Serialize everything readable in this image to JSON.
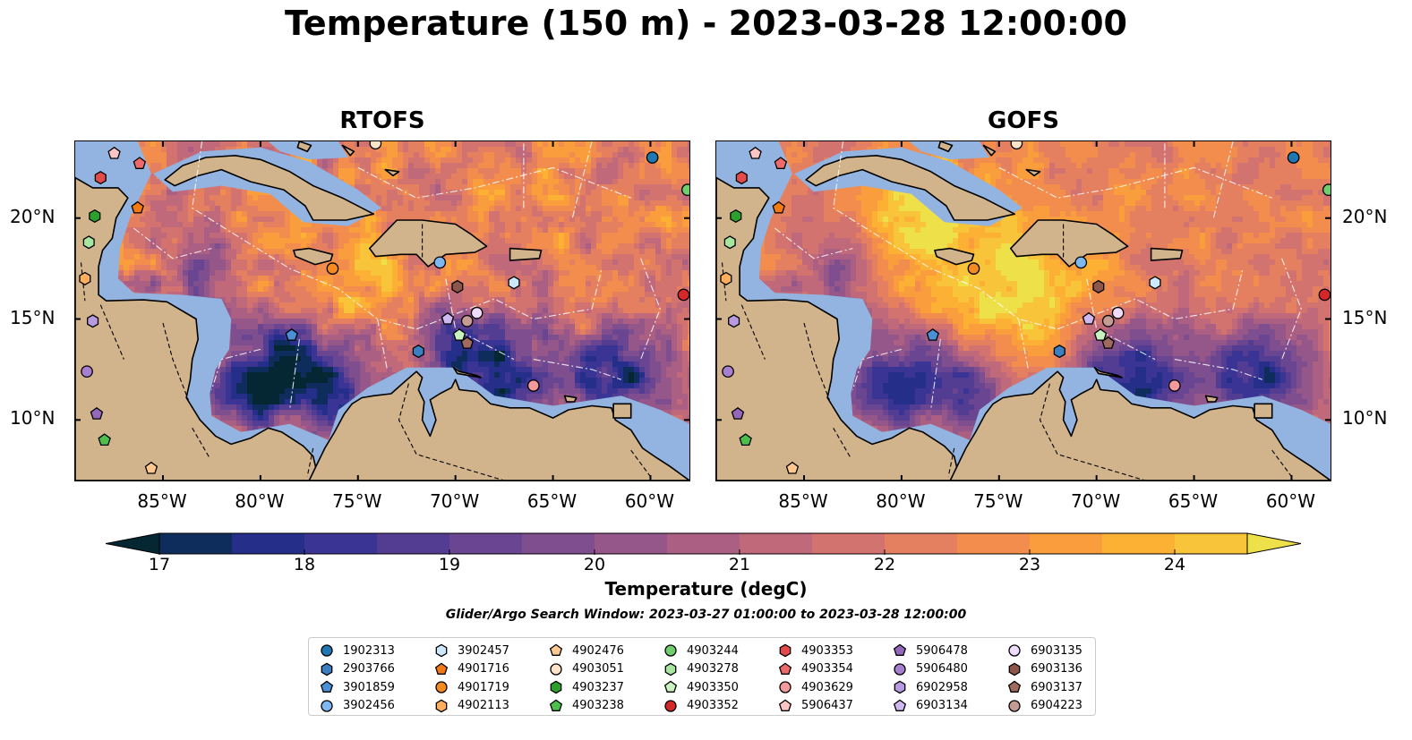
{
  "title": "Temperature (150 m) - 2023-03-28 12:00:00",
  "panels": [
    {
      "title": "RTOFS"
    },
    {
      "title": "GOFS"
    }
  ],
  "map": {
    "lon_range": [
      -89.5,
      -58.0
    ],
    "lat_range": [
      7.0,
      23.8
    ],
    "lon_ticks": [
      -85,
      -80,
      -75,
      -70,
      -65,
      -60
    ],
    "lon_tick_labels": [
      "85°W",
      "80°W",
      "75°W",
      "70°W",
      "65°W",
      "60°W"
    ],
    "lat_ticks": [
      10,
      15,
      20
    ],
    "lat_tick_labels": [
      "10°N",
      "15°N",
      "20°N"
    ],
    "land_color": "#d2b48c",
    "shelf_color": "#93b3e0"
  },
  "colorbar": {
    "label": "Temperature (degC)",
    "min": 17,
    "max": 24.5,
    "ticks": [
      17,
      18,
      19,
      20,
      21,
      22,
      23,
      24
    ],
    "tick_labels": [
      "17",
      "18",
      "19",
      "20",
      "21",
      "22",
      "23",
      "24"
    ],
    "extend": "both",
    "colors": [
      "#052633",
      "#0f2d5c",
      "#252f8a",
      "#3a3594",
      "#533d92",
      "#6a4591",
      "#7f4e8e",
      "#955689",
      "#ab5f83",
      "#c0697b",
      "#d37370",
      "#e47f60",
      "#f28d4d",
      "#fa9d3c",
      "#fcb034",
      "#f8c53a",
      "#eee049"
    ]
  },
  "search_window": "Glider/Argo Search Window: 2023-03-27 01:00:00 to 2023-03-28 12:00:00",
  "legend": [
    {
      "id": "1902313",
      "marker": "circle",
      "color": "#1f77b4",
      "lon": -59.9,
      "lat": 23.0
    },
    {
      "id": "2903766",
      "marker": "hexagon",
      "color": "#3a7fc0",
      "lon": -71.9,
      "lat": 13.4
    },
    {
      "id": "3901859",
      "marker": "pentagon",
      "color": "#4a90d6",
      "lon": -78.4,
      "lat": 14.2
    },
    {
      "id": "3902456",
      "marker": "circle",
      "color": "#7db8f0",
      "lon": -70.8,
      "lat": 17.8
    },
    {
      "id": "3902457",
      "marker": "hexagon",
      "color": "#cde8fb",
      "lon": -67.0,
      "lat": 16.8
    },
    {
      "id": "4901716",
      "marker": "pentagon",
      "color": "#f37a12",
      "lon": -86.3,
      "lat": 20.5
    },
    {
      "id": "4901719",
      "marker": "circle",
      "color": "#f58b20",
      "lon": -76.3,
      "lat": 17.5
    },
    {
      "id": "4902113",
      "marker": "hexagon",
      "color": "#ffae5e",
      "lon": -89.0,
      "lat": 17.0
    },
    {
      "id": "4902476",
      "marker": "pentagon",
      "color": "#ffc890",
      "lon": -85.6,
      "lat": 7.6
    },
    {
      "id": "4903051",
      "marker": "circle",
      "color": "#fde3c7",
      "lon": -74.1,
      "lat": 23.7
    },
    {
      "id": "4903237",
      "marker": "hexagon",
      "color": "#2ca02c",
      "lon": -88.5,
      "lat": 20.1
    },
    {
      "id": "4903238",
      "marker": "pentagon",
      "color": "#4cbf4c",
      "lon": -88.0,
      "lat": 9.0
    },
    {
      "id": "4903244",
      "marker": "circle",
      "color": "#6fcf6f",
      "lon": -58.1,
      "lat": 21.4
    },
    {
      "id": "4903278",
      "marker": "hexagon",
      "color": "#a8e6a0",
      "lon": -88.8,
      "lat": 18.8
    },
    {
      "id": "4903350",
      "marker": "pentagon",
      "color": "#c8f2c0",
      "lon": -69.8,
      "lat": 14.2
    },
    {
      "id": "4903352",
      "marker": "circle",
      "color": "#d62728",
      "lon": -58.3,
      "lat": 16.2
    },
    {
      "id": "4903353",
      "marker": "hexagon",
      "color": "#e34a4a",
      "lon": -88.2,
      "lat": 22.0
    },
    {
      "id": "4903354",
      "marker": "pentagon",
      "color": "#ee6a6a",
      "lon": -86.2,
      "lat": 22.7
    },
    {
      "id": "4903629",
      "marker": "circle",
      "color": "#f59a9a",
      "lon": -66.0,
      "lat": 11.7
    },
    {
      "id": "5906437",
      "marker": "pentagon",
      "color": "#fbc5c5",
      "lon": -87.5,
      "lat": 23.2
    },
    {
      "id": "5906478",
      "marker": "pentagon",
      "color": "#9467bd",
      "lon": -88.4,
      "lat": 10.3
    },
    {
      "id": "5906480",
      "marker": "circle",
      "color": "#a67fcf",
      "lon": -88.9,
      "lat": 12.4
    },
    {
      "id": "6902958",
      "marker": "hexagon",
      "color": "#b89ae0",
      "lon": -88.6,
      "lat": 14.9
    },
    {
      "id": "6903134",
      "marker": "pentagon",
      "color": "#d0b8f0",
      "lon": -70.4,
      "lat": 15.0
    },
    {
      "id": "6903135",
      "marker": "circle",
      "color": "#eedcfa",
      "lon": -68.9,
      "lat": 15.3
    },
    {
      "id": "6903136",
      "marker": "hexagon",
      "color": "#8c564b",
      "lon": -69.9,
      "lat": 16.6
    },
    {
      "id": "6903137",
      "marker": "pentagon",
      "color": "#a06b5e",
      "lon": -69.4,
      "lat": 13.8
    },
    {
      "id": "6904223",
      "marker": "circle",
      "color": "#c49c94",
      "lon": -69.4,
      "lat": 14.9
    }
  ]
}
